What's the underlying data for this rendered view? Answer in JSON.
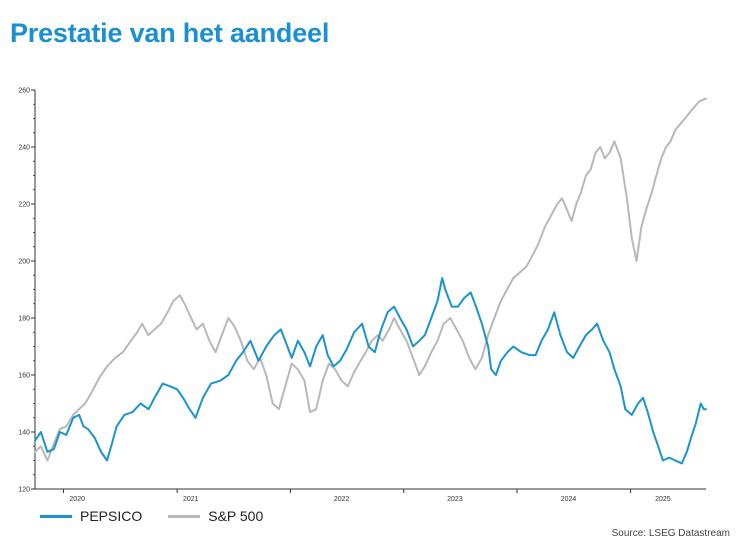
{
  "title": "Prestatie van het aandeel",
  "source": "Source: LSEG Datastream",
  "colors": {
    "title": "#1a8fd1",
    "pepsico": "#1a93cf",
    "sp500": "#b8b8b8",
    "axis": "#333333"
  },
  "chart_data": {
    "type": "line",
    "title": "Prestatie van het aandeel",
    "xlabel": "",
    "ylabel": "",
    "ylim": [
      120,
      260
    ],
    "xlim": [
      "2019-10-01",
      "2025-09-01"
    ],
    "y_ticks": [
      120,
      140,
      160,
      180,
      200,
      220,
      240,
      260
    ],
    "x_tick_labels": [
      "2020",
      "2021",
      "2022",
      "2023",
      "2024",
      "2025"
    ],
    "x_tick_dates": [
      "2020-01-01",
      "2021-01-01",
      "2022-01-01",
      "2023-01-01",
      "2024-01-01",
      "2025-01-01"
    ],
    "x_label_dates": [
      "2020-02-14",
      "2021-02-14",
      "2022-06-15",
      "2023-06-15",
      "2024-06-15",
      "2025-04-15"
    ],
    "grid": false,
    "legend_position": "bottom-left",
    "series": [
      {
        "name": "PEPSICO",
        "color": "#1a93cf",
        "points": [
          [
            "2019-10-01",
            137
          ],
          [
            "2019-10-20",
            140
          ],
          [
            "2019-11-10",
            133
          ],
          [
            "2019-12-01",
            134
          ],
          [
            "2019-12-20",
            140
          ],
          [
            "2020-01-10",
            139
          ],
          [
            "2020-02-01",
            145
          ],
          [
            "2020-02-20",
            146
          ],
          [
            "2020-03-05",
            142
          ],
          [
            "2020-03-20",
            141
          ],
          [
            "2020-04-10",
            138
          ],
          [
            "2020-05-01",
            133
          ],
          [
            "2020-05-20",
            130
          ],
          [
            "2020-06-05",
            136
          ],
          [
            "2020-06-20",
            142
          ],
          [
            "2020-07-15",
            146
          ],
          [
            "2020-08-10",
            147
          ],
          [
            "2020-09-05",
            150
          ],
          [
            "2020-10-01",
            148
          ],
          [
            "2020-10-20",
            152
          ],
          [
            "2020-11-15",
            157
          ],
          [
            "2020-12-10",
            156
          ],
          [
            "2021-01-01",
            155
          ],
          [
            "2021-01-20",
            152
          ],
          [
            "2021-02-10",
            148
          ],
          [
            "2021-03-01",
            145
          ],
          [
            "2021-03-25",
            152
          ],
          [
            "2021-04-20",
            157
          ],
          [
            "2021-05-20",
            158
          ],
          [
            "2021-06-15",
            160
          ],
          [
            "2021-07-10",
            165
          ],
          [
            "2021-08-01",
            168
          ],
          [
            "2021-08-25",
            172
          ],
          [
            "2021-09-20",
            165
          ],
          [
            "2021-10-15",
            170
          ],
          [
            "2021-11-10",
            174
          ],
          [
            "2021-12-01",
            176
          ],
          [
            "2021-12-15",
            172
          ],
          [
            "2022-01-05",
            166
          ],
          [
            "2022-01-25",
            172
          ],
          [
            "2022-02-15",
            168
          ],
          [
            "2022-03-05",
            163
          ],
          [
            "2022-03-25",
            170
          ],
          [
            "2022-04-15",
            174
          ],
          [
            "2022-05-01",
            167
          ],
          [
            "2022-05-20",
            163
          ],
          [
            "2022-06-10",
            165
          ],
          [
            "2022-07-01",
            169
          ],
          [
            "2022-07-25",
            175
          ],
          [
            "2022-08-20",
            178
          ],
          [
            "2022-09-10",
            170
          ],
          [
            "2022-09-30",
            168
          ],
          [
            "2022-10-20",
            176
          ],
          [
            "2022-11-10",
            182
          ],
          [
            "2022-12-01",
            184
          ],
          [
            "2022-12-20",
            180
          ],
          [
            "2023-01-10",
            176
          ],
          [
            "2023-01-31",
            170
          ],
          [
            "2023-02-20",
            172
          ],
          [
            "2023-03-10",
            174
          ],
          [
            "2023-03-31",
            180
          ],
          [
            "2023-04-20",
            186
          ],
          [
            "2023-05-05",
            194
          ],
          [
            "2023-05-15",
            190
          ],
          [
            "2023-06-05",
            184
          ],
          [
            "2023-06-25",
            184
          ],
          [
            "2023-07-15",
            187
          ],
          [
            "2023-08-05",
            189
          ],
          [
            "2023-08-25",
            183
          ],
          [
            "2023-09-10",
            178
          ],
          [
            "2023-09-30",
            170
          ],
          [
            "2023-10-10",
            162
          ],
          [
            "2023-10-25",
            160
          ],
          [
            "2023-11-10",
            165
          ],
          [
            "2023-12-01",
            168
          ],
          [
            "2023-12-20",
            170
          ],
          [
            "2024-01-15",
            168
          ],
          [
            "2024-02-10",
            167
          ],
          [
            "2024-03-01",
            167
          ],
          [
            "2024-03-20",
            172
          ],
          [
            "2024-04-10",
            176
          ],
          [
            "2024-04-30",
            182
          ],
          [
            "2024-05-20",
            174
          ],
          [
            "2024-06-10",
            168
          ],
          [
            "2024-06-30",
            166
          ],
          [
            "2024-07-20",
            170
          ],
          [
            "2024-08-10",
            174
          ],
          [
            "2024-08-30",
            176
          ],
          [
            "2024-09-15",
            178
          ],
          [
            "2024-10-05",
            172
          ],
          [
            "2024-10-25",
            168
          ],
          [
            "2024-11-10",
            162
          ],
          [
            "2024-11-30",
            156
          ],
          [
            "2024-12-15",
            148
          ],
          [
            "2025-01-05",
            146
          ],
          [
            "2025-01-25",
            150
          ],
          [
            "2025-02-10",
            152
          ],
          [
            "2025-02-25",
            147
          ],
          [
            "2025-03-15",
            140
          ],
          [
            "2025-03-31",
            135
          ],
          [
            "2025-04-15",
            130
          ],
          [
            "2025-05-05",
            131
          ],
          [
            "2025-05-25",
            130
          ],
          [
            "2025-06-15",
            129
          ],
          [
            "2025-07-01",
            133
          ],
          [
            "2025-07-15",
            138
          ],
          [
            "2025-07-30",
            143
          ],
          [
            "2025-08-15",
            150
          ],
          [
            "2025-08-25",
            148
          ],
          [
            "2025-09-01",
            148
          ]
        ]
      },
      {
        "name": "S&P 500",
        "color": "#b8b8b8",
        "points": [
          [
            "2019-10-01",
            133
          ],
          [
            "2019-10-20",
            135
          ],
          [
            "2019-11-10",
            130
          ],
          [
            "2019-12-01",
            136
          ],
          [
            "2019-12-20",
            141
          ],
          [
            "2020-01-10",
            142
          ],
          [
            "2020-02-01",
            146
          ],
          [
            "2020-02-20",
            148
          ],
          [
            "2020-03-10",
            150
          ],
          [
            "2020-04-01",
            154
          ],
          [
            "2020-04-25",
            159
          ],
          [
            "2020-05-20",
            163
          ],
          [
            "2020-06-15",
            166
          ],
          [
            "2020-07-10",
            168
          ],
          [
            "2020-08-05",
            172
          ],
          [
            "2020-08-25",
            175
          ],
          [
            "2020-09-10",
            178
          ],
          [
            "2020-09-30",
            174
          ],
          [
            "2020-10-20",
            176
          ],
          [
            "2020-11-10",
            178
          ],
          [
            "2020-12-01",
            182
          ],
          [
            "2020-12-20",
            186
          ],
          [
            "2021-01-10",
            188
          ],
          [
            "2021-01-25",
            185
          ],
          [
            "2021-02-15",
            180
          ],
          [
            "2021-03-05",
            176
          ],
          [
            "2021-03-25",
            178
          ],
          [
            "2021-04-15",
            172
          ],
          [
            "2021-05-05",
            168
          ],
          [
            "2021-05-25",
            174
          ],
          [
            "2021-06-15",
            180
          ],
          [
            "2021-07-05",
            177
          ],
          [
            "2021-07-25",
            172
          ],
          [
            "2021-08-15",
            165
          ],
          [
            "2021-09-05",
            162
          ],
          [
            "2021-09-25",
            166
          ],
          [
            "2021-10-15",
            160
          ],
          [
            "2021-11-05",
            150
          ],
          [
            "2021-11-25",
            148
          ],
          [
            "2021-12-15",
            156
          ],
          [
            "2022-01-05",
            164
          ],
          [
            "2022-01-25",
            162
          ],
          [
            "2022-02-15",
            158
          ],
          [
            "2022-03-05",
            147
          ],
          [
            "2022-03-25",
            148
          ],
          [
            "2022-04-15",
            158
          ],
          [
            "2022-05-05",
            164
          ],
          [
            "2022-05-25",
            162
          ],
          [
            "2022-06-15",
            158
          ],
          [
            "2022-07-05",
            156
          ],
          [
            "2022-07-25",
            161
          ],
          [
            "2022-08-15",
            165
          ],
          [
            "2022-09-01",
            168
          ],
          [
            "2022-09-20",
            172
          ],
          [
            "2022-10-10",
            174
          ],
          [
            "2022-10-25",
            172
          ],
          [
            "2022-11-15",
            176
          ],
          [
            "2022-12-01",
            180
          ],
          [
            "2022-12-20",
            176
          ],
          [
            "2023-01-10",
            172
          ],
          [
            "2023-01-31",
            166
          ],
          [
            "2023-02-20",
            160
          ],
          [
            "2023-03-10",
            163
          ],
          [
            "2023-03-31",
            168
          ],
          [
            "2023-04-20",
            172
          ],
          [
            "2023-05-10",
            178
          ],
          [
            "2023-05-31",
            180
          ],
          [
            "2023-06-20",
            176
          ],
          [
            "2023-07-10",
            172
          ],
          [
            "2023-07-31",
            166
          ],
          [
            "2023-08-20",
            162
          ],
          [
            "2023-09-10",
            166
          ],
          [
            "2023-09-30",
            174
          ],
          [
            "2023-10-20",
            180
          ],
          [
            "2023-11-10",
            186
          ],
          [
            "2023-11-30",
            190
          ],
          [
            "2023-12-20",
            194
          ],
          [
            "2024-01-10",
            196
          ],
          [
            "2024-01-31",
            198
          ],
          [
            "2024-02-20",
            202
          ],
          [
            "2024-03-10",
            206
          ],
          [
            "2024-03-31",
            212
          ],
          [
            "2024-04-20",
            216
          ],
          [
            "2024-05-10",
            220
          ],
          [
            "2024-05-25",
            222
          ],
          [
            "2024-06-10",
            218
          ],
          [
            "2024-06-25",
            214
          ],
          [
            "2024-07-10",
            220
          ],
          [
            "2024-07-25",
            224
          ],
          [
            "2024-08-10",
            230
          ],
          [
            "2024-08-25",
            232
          ],
          [
            "2024-09-10",
            238
          ],
          [
            "2024-09-25",
            240
          ],
          [
            "2024-10-10",
            236
          ],
          [
            "2024-10-25",
            238
          ],
          [
            "2024-11-10",
            242
          ],
          [
            "2024-11-30",
            236
          ],
          [
            "2024-12-20",
            222
          ],
          [
            "2025-01-05",
            208
          ],
          [
            "2025-01-20",
            200
          ],
          [
            "2025-02-05",
            212
          ],
          [
            "2025-02-20",
            218
          ],
          [
            "2025-03-10",
            224
          ],
          [
            "2025-03-25",
            230
          ],
          [
            "2025-04-10",
            236
          ],
          [
            "2025-04-25",
            240
          ],
          [
            "2025-05-10",
            242
          ],
          [
            "2025-05-25",
            246
          ],
          [
            "2025-06-10",
            248
          ],
          [
            "2025-06-25",
            250
          ],
          [
            "2025-07-10",
            252
          ],
          [
            "2025-07-25",
            254
          ],
          [
            "2025-08-10",
            256
          ],
          [
            "2025-09-01",
            257
          ]
        ]
      }
    ]
  }
}
